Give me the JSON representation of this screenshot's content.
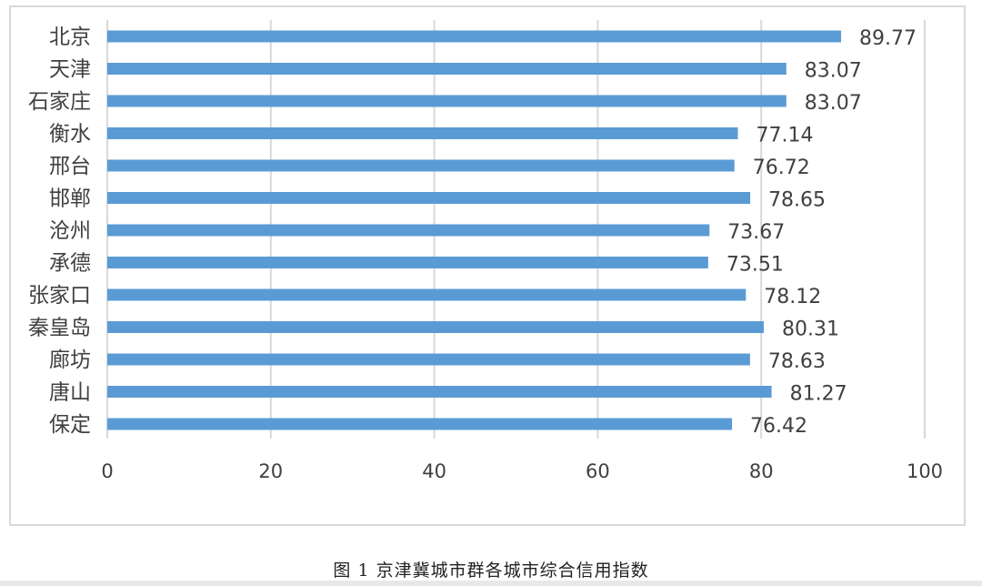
{
  "caption": "图 1 京津冀城市群各城市综合信用指数",
  "colors": {
    "bar": "#5b9bd5",
    "grid": "#d9d9d9",
    "text": "#404040"
  },
  "chart_data": {
    "type": "bar",
    "orientation": "horizontal",
    "categories": [
      "北京",
      "天津",
      "石家庄",
      "衡水",
      "邢台",
      "邯郸",
      "沧州",
      "承德",
      "张家口",
      "秦皇岛",
      "廊坊",
      "唐山",
      "保定"
    ],
    "values": [
      89.77,
      83.07,
      83.07,
      77.14,
      76.72,
      78.65,
      73.67,
      73.51,
      78.12,
      80.31,
      78.63,
      81.27,
      76.42
    ],
    "value_labels": [
      "89.77",
      "83.07",
      "83.07",
      "77.14",
      "76.72",
      "78.65",
      "73.67",
      "73.51",
      "78.12",
      "80.31",
      "78.63",
      "81.27",
      "76.42"
    ],
    "xlim": [
      0,
      100
    ],
    "xticks": [
      0,
      20,
      40,
      60,
      80,
      100
    ],
    "xtick_labels": [
      "0",
      "20",
      "40",
      "60",
      "80",
      "100"
    ],
    "grid": true,
    "legend": false,
    "title": "",
    "xlabel": "",
    "ylabel": ""
  }
}
